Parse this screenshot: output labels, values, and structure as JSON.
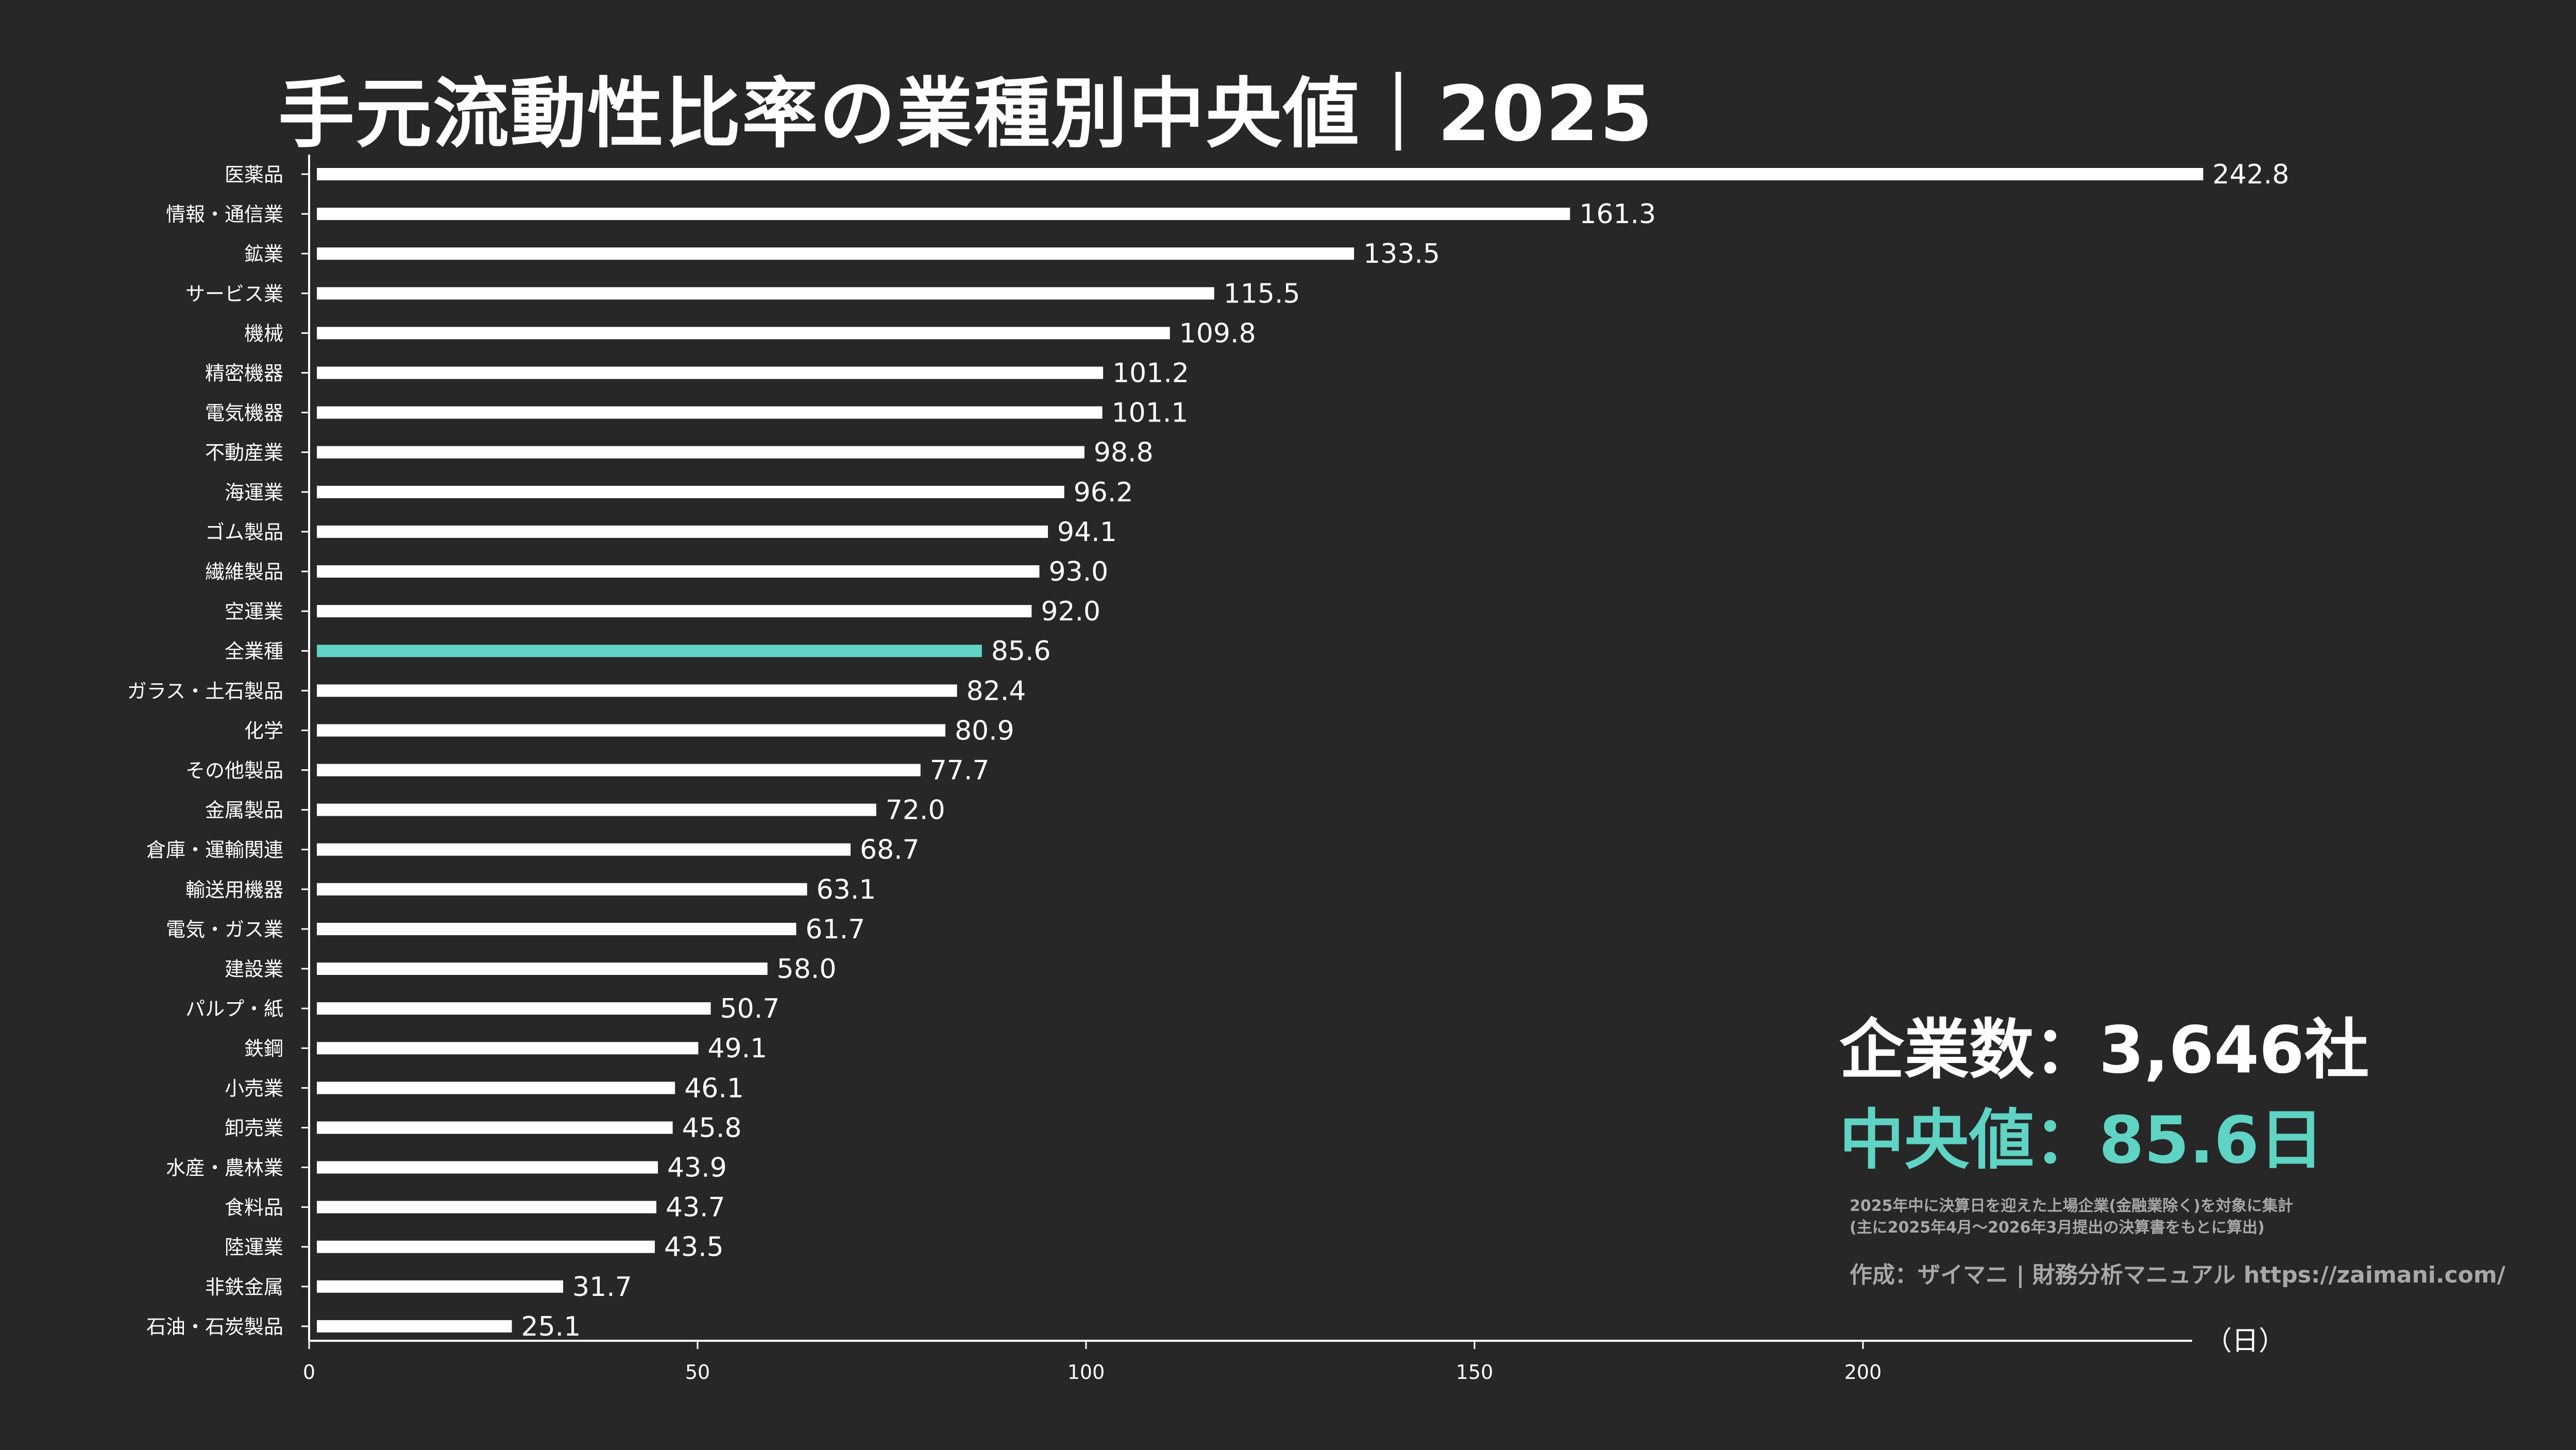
{
  "title": "手元流動性比率の業種別中央値｜2025",
  "stats": {
    "companies": "企業数：3,646社",
    "median": "中央値：85.6日"
  },
  "notes": {
    "line1": "2025年中に決算日を迎えた上場企業(金融業除く)を対象に集計",
    "line2": "(主に2025年4月～2026年3月提出の決算書をもとに算出)",
    "credit": "作成：ザイマニ | 財務分析マニュアル https://zaimani.com/"
  },
  "colors": {
    "background": "#272727",
    "bar": "#ffffff",
    "highlight": "#5fd3c4",
    "note": "#a8a8a8"
  },
  "chart_data": {
    "type": "bar",
    "orientation": "horizontal",
    "categories": [
      "医薬品",
      "情報・通信業",
      "鉱業",
      "サービス業",
      "機械",
      "精密機器",
      "電気機器",
      "不動産業",
      "海運業",
      "ゴム製品",
      "繊維製品",
      "空運業",
      "全業種",
      "ガラス・土石製品",
      "化学",
      "その他製品",
      "金属製品",
      "倉庫・運輸関連",
      "輸送用機器",
      "電気・ガス業",
      "建設業",
      "パルプ・紙",
      "鉄鋼",
      "小売業",
      "卸売業",
      "水産・農林業",
      "食料品",
      "陸運業",
      "非鉄金属",
      "石油・石炭製品"
    ],
    "values": [
      242.8,
      161.3,
      133.5,
      115.5,
      109.8,
      101.2,
      101.1,
      98.8,
      96.2,
      94.1,
      93.0,
      92.0,
      85.6,
      82.4,
      80.9,
      77.7,
      72.0,
      68.7,
      63.1,
      61.7,
      58.0,
      50.7,
      49.1,
      46.1,
      45.8,
      43.9,
      43.7,
      43.5,
      31.7,
      25.1
    ],
    "value_labels": [
      "242.8",
      "161.3",
      "133.5",
      "115.5",
      "109.8",
      "101.2",
      "101.1",
      "98.8",
      "96.2",
      "94.1",
      "93.0",
      "92.0",
      "85.6",
      "82.4",
      "80.9",
      "77.7",
      "72.0",
      "68.7",
      "63.1",
      "61.7",
      "58.0",
      "50.7",
      "49.1",
      "46.1",
      "45.8",
      "43.9",
      "43.7",
      "43.5",
      "31.7",
      "25.1"
    ],
    "highlight_category": "全業種",
    "xticks": [
      0,
      50,
      100,
      150,
      200
    ],
    "xtick_labels": [
      "0",
      "50",
      "100",
      "150",
      "200"
    ],
    "xlim": [
      0,
      243
    ],
    "unit_label": "（日）"
  }
}
